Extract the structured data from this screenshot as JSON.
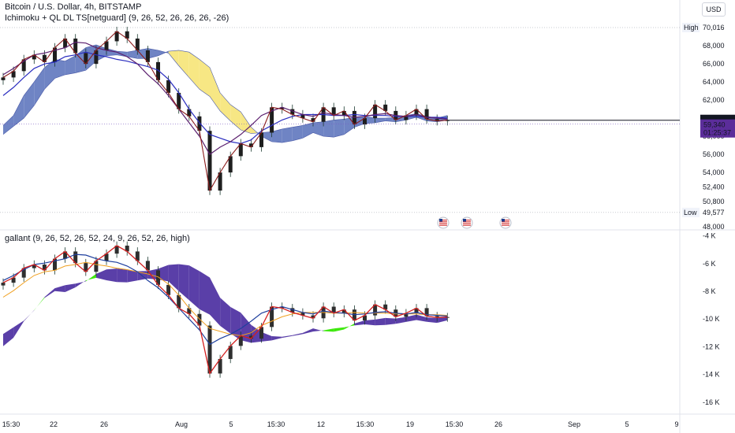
{
  "header": {
    "symbol_line": "Bitcoin / U.S. Dollar, 4h, BITSTAMP",
    "indicator1": "Ichimoku + QL DL TS[netguard] (9, 26, 52, 26, 26, 26, -26)",
    "indicator2": "gallant (9, 26, 52, 26, 52, 24, 9, 26, 52, 26, high)",
    "currency_button": "USD"
  },
  "chart_data": [
    {
      "type": "line",
      "title": "Bitcoin / U.S. Dollar, 4h, BITSTAMP",
      "y_ticks": [
        "70,016",
        "68,000",
        "66,000",
        "64,000",
        "62,000",
        "60,000",
        "58,000",
        "56,000",
        "54,000",
        "52,400",
        "50,800",
        "49,577",
        "48,000"
      ],
      "y_range": [
        48000,
        70800
      ],
      "high_label": "High",
      "high_value": "70,016",
      "low_label": "Low",
      "low_value": "49,577",
      "last_price": "59,772",
      "current_price": "59,340",
      "countdown": "01:25:37",
      "close_series": [
        64500,
        65200,
        66500,
        67000,
        66200,
        67800,
        68800,
        67200,
        66000,
        67500,
        68500,
        69600,
        68800,
        67500,
        66200,
        64200,
        62800,
        61000,
        60200,
        58600,
        52000,
        54000,
        55800,
        57200,
        56800,
        58400,
        61200,
        61000,
        60400,
        60000,
        59600,
        61200,
        60300,
        60800,
        59300,
        60000,
        61500,
        60800,
        59800,
        60300,
        61000,
        59900,
        59700,
        59772
      ],
      "tenkan": [
        64800,
        65500,
        66300,
        67000,
        67200,
        67500,
        67800,
        68400,
        68300,
        67800,
        67500,
        67300,
        66800,
        66000,
        64800,
        63800,
        62500,
        61000,
        59500,
        58000,
        56000,
        56800,
        57400,
        58200,
        59200,
        60300,
        60800,
        61200,
        60800,
        60400,
        60200,
        60600,
        60400,
        60300,
        60100,
        60200,
        60400,
        60500,
        60300,
        60200,
        60400,
        60100,
        60000,
        59900
      ],
      "kijun": [
        62500,
        63400,
        64500,
        65500,
        66000,
        66200,
        66800,
        67000,
        67300,
        67000,
        66800,
        66500,
        66300,
        66000,
        65700,
        65300,
        64300,
        62800,
        61000,
        59500,
        58200,
        57800,
        57400,
        57200,
        57600,
        58600,
        59200,
        59800,
        60200,
        60400,
        60400,
        60400,
        60300,
        60300,
        60400,
        60300,
        60300,
        60300,
        60200,
        60200,
        60200,
        60100,
        60100,
        60000
      ],
      "cloud_a": [
        59200,
        60300,
        62500,
        64000,
        65600,
        66500,
        66300,
        66900,
        67800,
        68100,
        67700,
        67400,
        67300,
        67500,
        67700,
        67500,
        67200,
        65800,
        64500,
        63200,
        62400,
        60800,
        59700,
        58700,
        58300,
        58400,
        58500,
        58800,
        59000,
        59200,
        59500,
        59600,
        59800,
        59900,
        60100,
        60200,
        60000,
        60000,
        60100,
        60300,
        60500,
        60200,
        60000,
        60300
      ],
      "cloud_b": [
        58200,
        59100,
        60000,
        61400,
        63200,
        64400,
        64800,
        65000,
        65300,
        66300,
        66900,
        67000,
        66800,
        66600,
        66600,
        66900,
        67400,
        67500,
        67300,
        66500,
        65600,
        62800,
        61500,
        60700,
        59000,
        58000,
        57400,
        57300,
        57500,
        57800,
        58400,
        58000,
        57900,
        58200,
        59000,
        59400,
        59500,
        59700,
        59600,
        59800,
        60100,
        59700,
        59600,
        59800
      ]
    },
    {
      "type": "line",
      "title": "gallant (9, 26, 52, 26, 52, 24, 9, 26, 52, 26, high)",
      "y_ticks": [
        "-4 K",
        "-6 K",
        "-8 K",
        "-10 K",
        "-12 K",
        "-14 K",
        "-16 K"
      ],
      "y_range": [
        -16800,
        -3800
      ],
      "x_ticks": [
        "15:30",
        "22",
        "26",
        "Aug",
        "5",
        "15:30",
        "12",
        "15:30",
        "19",
        "15:30",
        "26",
        "Sep",
        "5",
        "9"
      ]
    }
  ]
}
